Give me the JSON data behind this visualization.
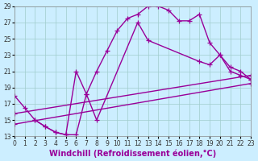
{
  "title": "",
  "xlabel": "Windchill (Refroidissement éolien,°C)",
  "ylabel": "",
  "bg_color": "#cceeff",
  "line_color": "#990099",
  "xlim": [
    0,
    23
  ],
  "ylim": [
    13,
    29
  ],
  "xticks": [
    0,
    1,
    2,
    3,
    4,
    5,
    6,
    7,
    8,
    9,
    10,
    11,
    12,
    13,
    14,
    15,
    16,
    17,
    18,
    19,
    20,
    21,
    22,
    23
  ],
  "yticks": [
    13,
    15,
    17,
    19,
    21,
    23,
    25,
    27,
    29
  ],
  "lines": [
    {
      "x": [
        0,
        1,
        2,
        3,
        4,
        5,
        6,
        7,
        8,
        9,
        10,
        11,
        12,
        13,
        14,
        15,
        16,
        17,
        18,
        19,
        20,
        21,
        22,
        23
      ],
      "y": [
        18.0,
        16.5,
        15.0,
        14.2,
        13.5,
        13.2,
        13.2,
        18.2,
        21.0,
        23.5,
        26.0,
        27.5,
        28.0,
        29.0,
        29.0,
        28.5,
        27.2,
        27.2,
        28.0,
        24.5,
        23.0,
        21.0,
        20.5,
        20.0
      ]
    },
    {
      "x": [
        2,
        3,
        4,
        5,
        6,
        7,
        8,
        12,
        13,
        18,
        19,
        20,
        21,
        22,
        23
      ],
      "y": [
        15.0,
        14.2,
        13.5,
        13.2,
        21.0,
        18.2,
        15.0,
        27.0,
        24.8,
        22.2,
        21.8,
        23.0,
        21.5,
        21.0,
        20.0
      ]
    },
    {
      "x": [
        0,
        23
      ],
      "y": [
        14.5,
        19.5
      ]
    },
    {
      "x": [
        0,
        23
      ],
      "y": [
        15.8,
        20.5
      ]
    }
  ],
  "marker": "+",
  "markersize": 4,
  "linewidth": 1.0,
  "tick_fontsize": 5.5,
  "label_fontsize": 7,
  "grid_color": "#a0cccc",
  "grid_linewidth": 0.5
}
